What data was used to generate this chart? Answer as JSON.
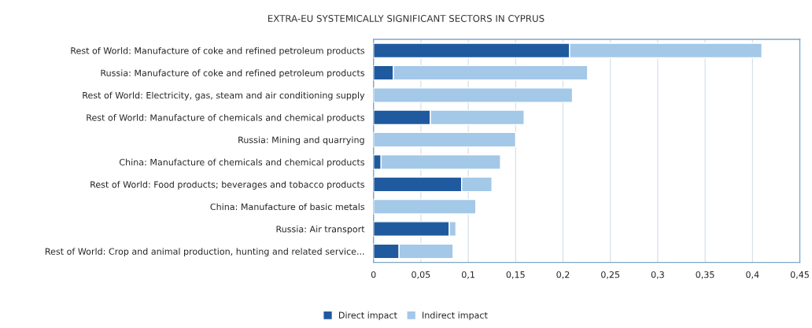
{
  "chart_data": {
    "type": "bar",
    "orientation": "horizontal",
    "stacked": true,
    "title": "EXTRA-EU SYSTEMICALLY SIGNIFICANT SECTORS IN CYPRUS",
    "categories": [
      "Rest of World: Manufacture of coke and refined petroleum products",
      "Russia: Manufacture of coke and refined petroleum products",
      "Rest of World: Electricity, gas, steam and air conditioning supply",
      "Rest of World: Manufacture of chemicals and chemical products",
      "Russia: Mining and quarrying",
      "China: Manufacture of chemicals and chemical products",
      "Rest of World: Food products; beverages and tobacco products",
      "China: Manufacture of basic metals",
      "Russia: Air transport",
      "Rest of World: Crop and animal production, hunting and related service..."
    ],
    "series": [
      {
        "name": "Direct impact",
        "color": "#1f5a9e",
        "values": [
          0.207,
          0.021,
          null,
          0.06,
          null,
          0.008,
          0.093,
          0.0,
          0.08,
          0.027
        ]
      },
      {
        "name": "Indirect impact",
        "color": "#a3c8e8",
        "values": [
          0.203,
          0.205,
          0.21,
          0.099,
          0.15,
          0.126,
          0.032,
          0.108,
          0.007,
          0.057
        ]
      }
    ],
    "xlim": [
      0,
      0.45
    ],
    "xticks": [
      0,
      {
        "value": 0.05,
        "label": "0,05"
      },
      {
        "value": 0.1,
        "label": "0,1"
      },
      {
        "value": 0.15,
        "label": "0,15"
      },
      {
        "value": 0.2,
        "label": "0,2"
      },
      {
        "value": 0.25,
        "label": "0,25"
      },
      {
        "value": 0.3,
        "label": "0,3"
      },
      {
        "value": 0.35,
        "label": "0,35"
      },
      {
        "value": 0.4,
        "label": "0,4"
      },
      {
        "value": 0.45,
        "label": "0,45"
      }
    ],
    "grid": "x",
    "legend": "bottom"
  }
}
